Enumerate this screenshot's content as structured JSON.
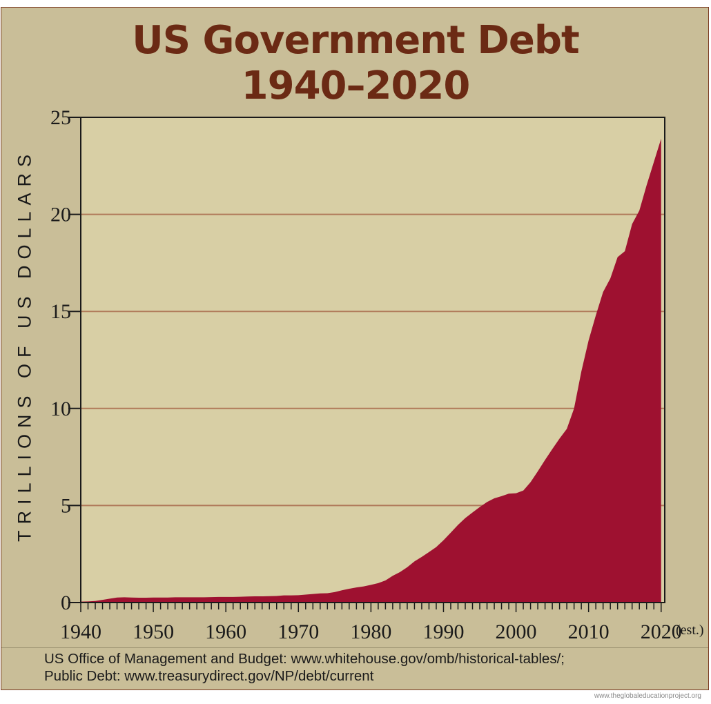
{
  "title_line1": "US Government Debt",
  "title_line2": "1940–2020",
  "source_line1": "US Office of Management and Budget: www.whitehouse.gov/omb/historical-tables/;",
  "source_line2": "Public Debt: www.treasurydirect.gov/NP/debt/current",
  "watermark": "www.theglobaleducationproject.org",
  "est_note": "(est.)",
  "colors": {
    "frame_background": "#c9be98",
    "plot_background": "#d8cfa5",
    "area_fill": "#9e1130",
    "gridline": "#b07a5a",
    "title": "#6b2a14"
  },
  "chart_data": {
    "type": "area",
    "title": "US Government Debt 1940–2020",
    "ylabel": "TRILLIONS OF US DOLLARS",
    "xlabel": "",
    "xlim": [
      1940,
      2020.5
    ],
    "ylim": [
      0,
      25
    ],
    "grid": "horizontal",
    "x_ticks": [
      1940,
      1950,
      1960,
      1970,
      1980,
      1990,
      2000,
      2010,
      2020
    ],
    "x_tick_labels": [
      "1940",
      "1950",
      "1960",
      "1970",
      "1980",
      "1990",
      "2000",
      "2010",
      "2020"
    ],
    "y_ticks": [
      0,
      5,
      10,
      15,
      20,
      25
    ],
    "y_tick_labels": [
      "0",
      "5",
      "10",
      "15",
      "20",
      "25"
    ],
    "series": [
      {
        "x": [
          1940,
          1941,
          1942,
          1943,
          1944,
          1945,
          1946,
          1947,
          1948,
          1949,
          1950,
          1951,
          1952,
          1953,
          1954,
          1955,
          1956,
          1957,
          1958,
          1959,
          1960,
          1961,
          1962,
          1963,
          1964,
          1965,
          1966,
          1967,
          1968,
          1969,
          1970,
          1971,
          1972,
          1973,
          1974,
          1975,
          1976,
          1977,
          1978,
          1979,
          1980,
          1981,
          1982,
          1983,
          1984,
          1985,
          1986,
          1987,
          1988,
          1989,
          1990,
          1991,
          1992,
          1993,
          1994,
          1995,
          1996,
          1997,
          1998,
          1999,
          2000,
          2001,
          2002,
          2003,
          2004,
          2005,
          2006,
          2007,
          2008,
          2009,
          2010,
          2011,
          2012,
          2013,
          2014,
          2015,
          2016,
          2017,
          2018,
          2019,
          2020
        ],
        "values": [
          0.05,
          0.06,
          0.08,
          0.14,
          0.2,
          0.26,
          0.27,
          0.26,
          0.25,
          0.25,
          0.26,
          0.26,
          0.26,
          0.27,
          0.27,
          0.27,
          0.27,
          0.27,
          0.28,
          0.29,
          0.29,
          0.29,
          0.3,
          0.31,
          0.32,
          0.32,
          0.33,
          0.34,
          0.37,
          0.37,
          0.38,
          0.41,
          0.44,
          0.47,
          0.48,
          0.54,
          0.63,
          0.71,
          0.78,
          0.83,
          0.91,
          1.0,
          1.14,
          1.38,
          1.57,
          1.82,
          2.12,
          2.35,
          2.6,
          2.86,
          3.21,
          3.6,
          4.0,
          4.35,
          4.64,
          4.92,
          5.18,
          5.37,
          5.48,
          5.61,
          5.63,
          5.77,
          6.2,
          6.76,
          7.35,
          7.91,
          8.45,
          8.95,
          10.0,
          11.9,
          13.5,
          14.8,
          16.0,
          16.7,
          17.8,
          18.1,
          19.5,
          20.2,
          21.5,
          22.7,
          23.9
        ]
      }
    ]
  }
}
